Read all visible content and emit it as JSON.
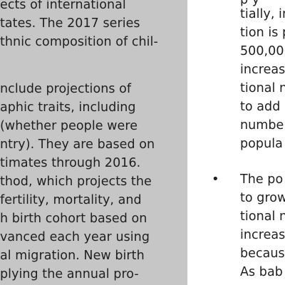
{
  "sidebar": {
    "lines": [
      "ects of international",
      "tates. The 2017 series",
      "thnic composition of chil-",
      "nclude projections of",
      "aphic traits, including",
      "(whether people were",
      "ntry). They are based on",
      "timates through 2016.",
      "thod, which projects the",
      "fertility, mortality, and",
      "h birth cohort based on",
      "vanced each year using",
      "al migration. New birth",
      "plying the annual pro-"
    ]
  },
  "main": {
    "bullet": "•",
    "lines": [
      "p y",
      "tially, in",
      "tion is p",
      "500,00",
      "increas",
      "tional n",
      "to add",
      "numbe",
      "popula",
      "The po",
      "to grow",
      "tional n",
      "increas",
      "becaus",
      "As bab"
    ]
  }
}
